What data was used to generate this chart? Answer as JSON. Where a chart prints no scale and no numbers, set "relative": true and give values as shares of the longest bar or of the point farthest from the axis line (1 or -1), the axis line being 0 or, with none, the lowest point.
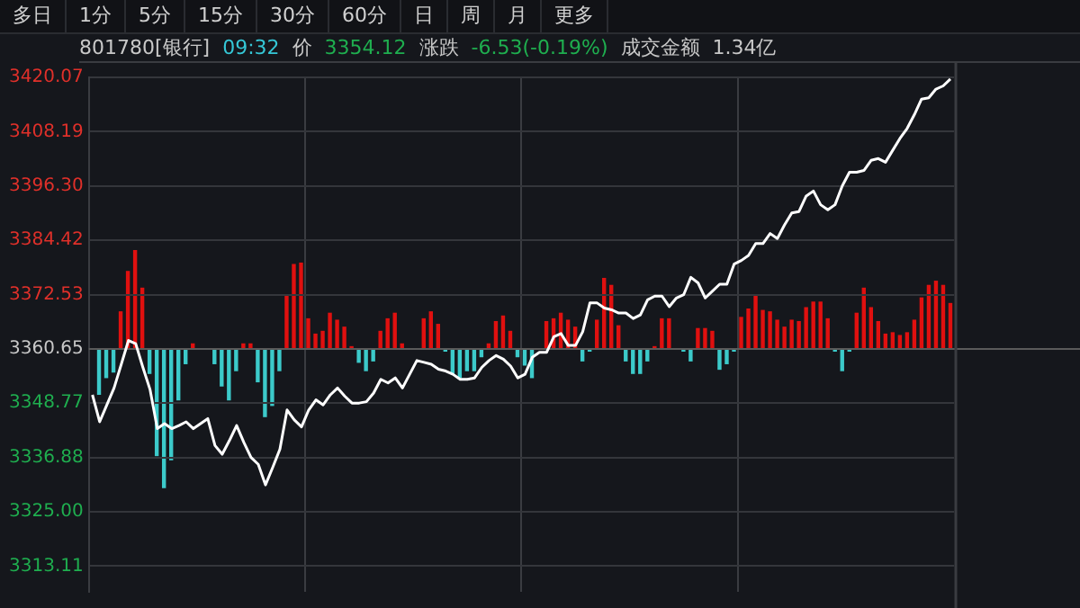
{
  "chart_data": [
    {
      "type": "line",
      "title": "801780[银行]",
      "subtitle": "多日 1分 5分 15分 30分 60分 日 周 月 更多",
      "annotations": [
        "09:32",
        "价",
        "3354.12",
        "涨跌",
        "-6.53(-0.19%)",
        "成交金额",
        "1.34亿"
      ],
      "categories": [
        null,
        null,
        null,
        null,
        null,
        null,
        null,
        null,
        null,
        null,
        null,
        null,
        null,
        null,
        null,
        null,
        null,
        null,
        null,
        null,
        null,
        null,
        null,
        null,
        null,
        null,
        null,
        null,
        null,
        null,
        null,
        null,
        null,
        null,
        null,
        null,
        null,
        null,
        null,
        null,
        null,
        null,
        null,
        null,
        null,
        null,
        null,
        null,
        null,
        null,
        null,
        null,
        null,
        null,
        null,
        null,
        null,
        null,
        null,
        null,
        null,
        null,
        null,
        null,
        null,
        null,
        null,
        null,
        null,
        null,
        null,
        null,
        null,
        null,
        null,
        null,
        null,
        null,
        null,
        null,
        null,
        null,
        null,
        null,
        null,
        null,
        null,
        null,
        null,
        null,
        null,
        null,
        null,
        null,
        null,
        null,
        null,
        null,
        null,
        null,
        null,
        null,
        null,
        null,
        null,
        null,
        null,
        null,
        null,
        null,
        null,
        null,
        null,
        null,
        null,
        null,
        null,
        null,
        null,
        null
      ],
      "series": [
        {
          "color": "#ffffff",
          "values": [
            3350.6,
            3344.7,
            3348.4,
            3352.1,
            3357.3,
            3362.5,
            3361.8,
            3356.6,
            3351.7,
            3343.2,
            3344.3,
            3343.2,
            3343.9,
            3344.7,
            3343.2,
            3344.3,
            3345.4,
            3339.5,
            3337.6,
            3340.6,
            3343.9,
            3340.2,
            3336.9,
            3335.4,
            3330.9,
            3334.7,
            3338.7,
            3347.3,
            3345.1,
            3343.6,
            3347.3,
            3349.5,
            3348.4,
            3350.6,
            3352.1,
            3350.3,
            3348.8,
            3348.8,
            3349.1,
            3351.0,
            3354.0,
            3353.2,
            3354.3,
            3352.1,
            3355.1,
            3358.1,
            3357.7,
            3357.3,
            3356.2,
            3355.8,
            3355.1,
            3354.0,
            3354.0,
            3354.3,
            3356.6,
            3358.1,
            3359.2,
            3358.4,
            3356.9,
            3354.3,
            3355.1,
            3358.8,
            3359.9,
            3359.9,
            3363.3,
            3364.0,
            3361.4,
            3361.4,
            3364.4,
            3370.7,
            3370.7,
            3369.6,
            3369.2,
            3368.5,
            3368.5,
            3367.3,
            3368.1,
            3371.4,
            3372.2,
            3372.2,
            3369.9,
            3371.8,
            3372.5,
            3376.3,
            3375.1,
            3371.8,
            3373.3,
            3374.8,
            3374.8,
            3379.2,
            3380.0,
            3381.1,
            3383.7,
            3383.7,
            3385.9,
            3384.8,
            3387.8,
            3390.4,
            3390.7,
            3394.1,
            3395.2,
            3392.2,
            3391.1,
            3392.2,
            3396.3,
            3399.3,
            3399.3,
            3399.7,
            3401.9,
            3402.3,
            3401.5,
            3404.1,
            3406.7,
            3408.9,
            3411.9,
            3415.3,
            3415.6,
            3417.5,
            3418.2,
            3419.7
          ]
        }
      ],
      "ylim": [
        3307.5,
        3420.07
      ],
      "yticks": [
        3420.07,
        3408.19,
        {
          "value": 3396.3,
          "label": "3396.30"
        },
        3384.42,
        3372.53,
        3360.65,
        3348.77,
        3336.88,
        {
          "value": 3325,
          "label": "3325.00"
        },
        3313.11
      ],
      "ref_lines": [
        {
          "axis": "y",
          "value": 3360.65,
          "color": "#5a5a5a"
        }
      ],
      "grid": true,
      "marker": "none",
      "tick_labels": "y",
      "legend": false
    },
    {
      "type": "bar",
      "relative": true,
      "tick_labels": false,
      "legend": false,
      "categories": [
        null,
        null,
        null,
        null,
        null,
        null,
        null,
        null,
        null,
        null,
        null,
        null,
        null,
        null,
        null,
        null,
        null,
        null,
        null,
        null,
        null,
        null,
        null,
        null,
        null,
        null,
        null,
        null,
        null,
        null,
        null,
        null,
        null,
        null,
        null,
        null,
        null,
        null,
        null,
        null,
        null,
        null,
        null,
        null,
        null,
        null,
        null,
        null,
        null,
        null,
        null,
        null,
        null,
        null,
        null,
        null,
        null,
        null,
        null,
        null,
        null,
        null,
        null,
        null,
        null,
        null,
        null,
        null,
        null,
        null,
        null,
        null,
        null,
        null,
        null,
        null,
        null,
        null,
        null,
        null,
        null,
        null,
        null,
        null,
        null,
        null,
        null,
        null,
        null,
        null,
        null,
        null,
        null,
        null,
        null,
        null,
        null,
        null,
        null,
        null,
        null,
        null,
        null,
        null,
        null,
        null,
        null,
        null,
        null,
        null,
        null,
        null,
        null,
        null,
        null,
        null,
        null,
        null,
        null,
        null
      ],
      "series": [
        {
          "color": "#e0100f",
          "values": [
            null,
            null,
            null,
            null,
            0.27,
            0.56,
            0.71,
            0.44,
            null,
            null,
            null,
            null,
            null,
            null,
            0.04,
            null,
            null,
            null,
            null,
            null,
            null,
            0.04,
            0.04,
            null,
            null,
            null,
            null,
            0.39,
            0.61,
            0.62,
            0.22,
            0.11,
            0.13,
            0.26,
            0.21,
            0.16,
            0.02,
            null,
            null,
            null,
            0.13,
            0.22,
            0.26,
            0.04,
            null,
            null,
            0.22,
            0.27,
            0.18,
            null,
            null,
            null,
            null,
            null,
            null,
            0.04,
            0.2,
            0.24,
            0.13,
            null,
            null,
            null,
            null,
            0.2,
            0.22,
            0.26,
            0.21,
            0.16,
            null,
            null,
            0.21,
            0.51,
            0.46,
            0.17,
            null,
            null,
            null,
            null,
            0.02,
            0.22,
            0.22,
            null,
            null,
            null,
            0.15,
            0.15,
            0.13,
            null,
            null,
            null,
            0.23,
            0.29,
            0.39,
            0.28,
            0.27,
            0.21,
            0.16,
            0.21,
            0.2,
            0.3,
            0.34,
            0.34,
            0.22,
            null,
            null,
            null,
            0.26,
            0.44,
            0.3,
            0.2,
            0.11,
            0.12,
            0.1,
            0.12,
            0.21,
            0.37,
            0.46,
            0.49,
            0.46,
            0.33
          ]
        },
        {
          "color": "#3ccaca",
          "values": [
            null,
            -0.33,
            -0.21,
            -0.17,
            null,
            null,
            null,
            null,
            -0.18,
            -0.77,
            -1,
            -0.8,
            -0.37,
            -0.11,
            null,
            null,
            null,
            -0.11,
            -0.27,
            -0.37,
            -0.16,
            null,
            null,
            -0.24,
            -0.49,
            -0.41,
            -0.16,
            null,
            null,
            null,
            null,
            null,
            null,
            null,
            null,
            null,
            null,
            -0.1,
            -0.16,
            -0.09,
            null,
            null,
            null,
            null,
            null,
            null,
            null,
            null,
            null,
            -0.02,
            -0.18,
            -0.21,
            -0.16,
            -0.16,
            -0.06,
            null,
            null,
            null,
            null,
            -0.06,
            -0.12,
            -0.21,
            null,
            null,
            null,
            null,
            null,
            null,
            -0.09,
            -0.02,
            null,
            null,
            null,
            null,
            -0.09,
            -0.18,
            -0.18,
            -0.09,
            null,
            null,
            null,
            null,
            -0.02,
            -0.09,
            null,
            null,
            null,
            -0.15,
            -0.11,
            -0.02,
            null,
            null,
            null,
            null,
            null,
            null,
            null,
            null,
            null,
            null,
            null,
            null,
            null,
            -0.02,
            -0.16,
            -0.02,
            null,
            null,
            null,
            null,
            null,
            null,
            null,
            null,
            null,
            null,
            null,
            null,
            null,
            null
          ]
        }
      ]
    }
  ]
}
